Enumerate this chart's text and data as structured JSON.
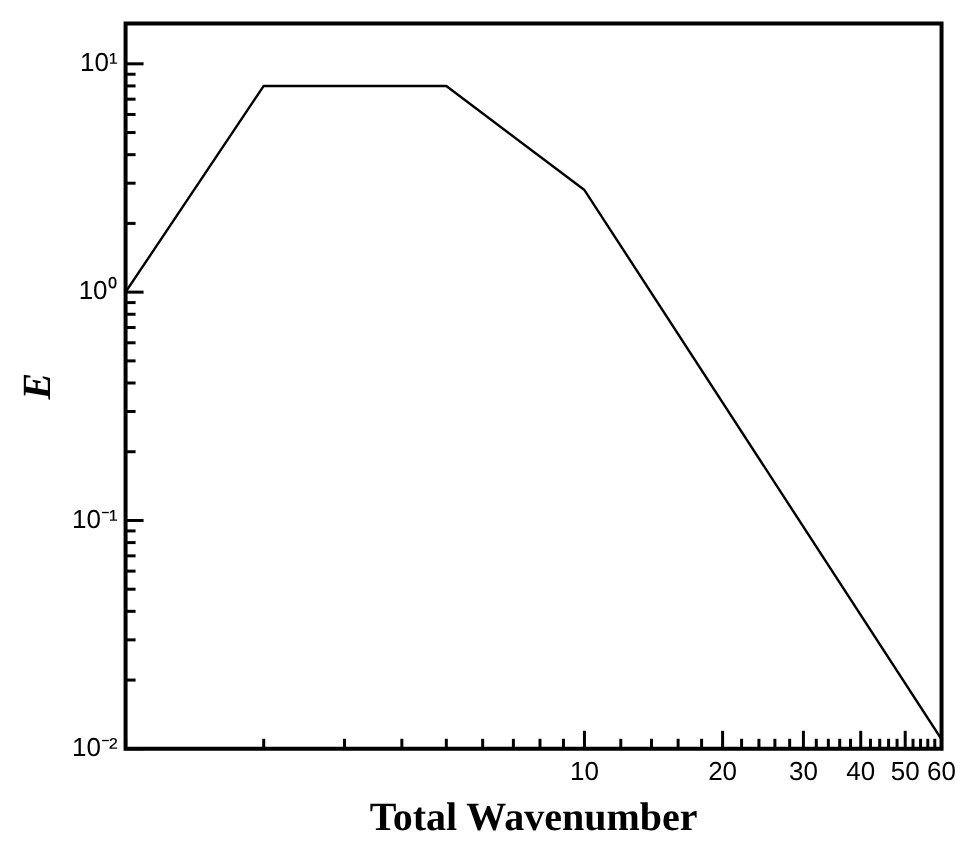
{
  "chart_data": {
    "type": "line",
    "xlabel": "Total Wavenumber",
    "ylabel": "E",
    "log": "xy",
    "marker": "none",
    "line_style": "solid",
    "series": [
      {
        "color": "#000000",
        "x": [
          1,
          2,
          5,
          10,
          60
        ],
        "values": [
          1,
          8,
          8,
          2.8,
          0.011
        ]
      }
    ],
    "xlim": [
      1,
      60
    ],
    "ylim": [
      0.01,
      15
    ],
    "xticks": [
      {
        "value": 1,
        "label": null
      },
      {
        "value": 2,
        "label": null
      },
      {
        "value": 3,
        "label": null
      },
      {
        "value": 4,
        "label": null
      },
      {
        "value": 5,
        "label": null
      },
      {
        "value": 6,
        "label": null
      },
      {
        "value": 7,
        "label": null
      },
      {
        "value": 8,
        "label": null
      },
      {
        "value": 9,
        "label": null
      },
      10,
      {
        "value": 12,
        "label": null
      },
      {
        "value": 14,
        "label": null
      },
      {
        "value": 16,
        "label": null
      },
      {
        "value": 18,
        "label": null
      },
      20,
      {
        "value": 22,
        "label": null
      },
      {
        "value": 24,
        "label": null
      },
      {
        "value": 26,
        "label": null
      },
      {
        "value": 28,
        "label": null
      },
      30,
      {
        "value": 32,
        "label": null
      },
      {
        "value": 34,
        "label": null
      },
      {
        "value": 36,
        "label": null
      },
      {
        "value": 38,
        "label": null
      },
      40,
      {
        "value": 42,
        "label": null
      },
      {
        "value": 44,
        "label": null
      },
      {
        "value": 46,
        "label": null
      },
      {
        "value": 48,
        "label": null
      },
      50,
      {
        "value": 52,
        "label": null
      },
      {
        "value": 54,
        "label": null
      },
      {
        "value": 56,
        "label": null
      },
      {
        "value": 58,
        "label": null
      },
      60
    ],
    "yticks": [
      {
        "value": 0.01,
        "label": "10⁻²"
      },
      {
        "value": 0.02,
        "label": null
      },
      {
        "value": 0.03,
        "label": null
      },
      {
        "value": 0.04,
        "label": null
      },
      {
        "value": 0.05,
        "label": null
      },
      {
        "value": 0.06,
        "label": null
      },
      {
        "value": 0.07,
        "label": null
      },
      {
        "value": 0.08,
        "label": null
      },
      {
        "value": 0.09,
        "label": null
      },
      {
        "value": 0.1,
        "label": "10⁻¹"
      },
      {
        "value": 0.2,
        "label": null
      },
      {
        "value": 0.3,
        "label": null
      },
      {
        "value": 0.4,
        "label": null
      },
      {
        "value": 0.5,
        "label": null
      },
      {
        "value": 0.6,
        "label": null
      },
      {
        "value": 0.7,
        "label": null
      },
      {
        "value": 0.8,
        "label": null
      },
      {
        "value": 0.9,
        "label": null
      },
      {
        "value": 1,
        "label": "10⁰"
      },
      {
        "value": 2,
        "label": null
      },
      {
        "value": 3,
        "label": null
      },
      {
        "value": 4,
        "label": null
      },
      {
        "value": 5,
        "label": null
      },
      {
        "value": 6,
        "label": null
      },
      {
        "value": 7,
        "label": null
      },
      {
        "value": 8,
        "label": null
      },
      {
        "value": 9,
        "label": null
      },
      {
        "value": 10,
        "label": "10¹"
      }
    ]
  }
}
